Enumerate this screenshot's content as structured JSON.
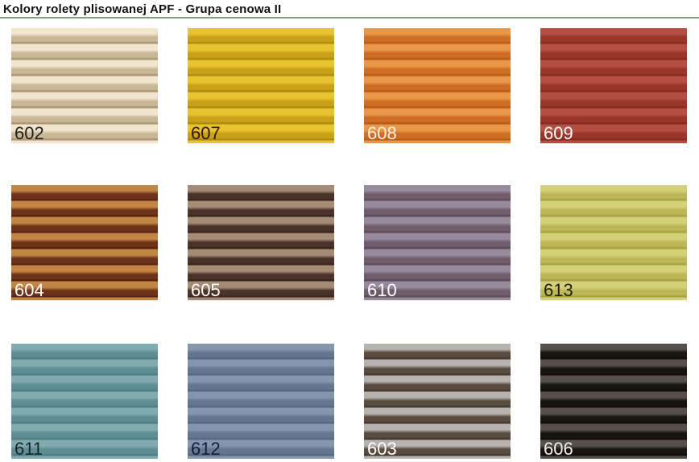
{
  "header": {
    "title": "Kolory rolety plisowanej APF - Grupa cenowa II",
    "rule_color": "#7aa97a"
  },
  "swatches": [
    {
      "label": "602",
      "light": "#f0e5cd",
      "dark": "#c9b694",
      "edge": "#ab9674",
      "label_color": "#1f1f1f"
    },
    {
      "label": "607",
      "light": "#e8c530",
      "dark": "#c9a018",
      "edge": "#ad8a10",
      "label_color": "#2a1c02"
    },
    {
      "label": "608",
      "light": "#e89848",
      "dark": "#cd6e24",
      "edge": "#b55a18",
      "label_color": "#f7efe7"
    },
    {
      "label": "609",
      "light": "#b54f42",
      "dark": "#99352a",
      "edge": "#842a20",
      "label_color": "#ffffff"
    },
    {
      "label": "604",
      "light": "#c28544",
      "dark": "#6d3418",
      "edge": "#572510",
      "label_color": "#ffffff"
    },
    {
      "label": "605",
      "light": "#a48c76",
      "dark": "#4b332a",
      "edge": "#3a2620",
      "label_color": "#ffffff"
    },
    {
      "label": "610",
      "light": "#968a9e",
      "dark": "#705c6a",
      "edge": "#5e4c5a",
      "label_color": "#ffffff"
    },
    {
      "label": "613",
      "light": "#d5d07a",
      "dark": "#bcb858",
      "edge": "#a8a446",
      "label_color": "#1e1e10"
    },
    {
      "label": "611",
      "light": "#81abae",
      "dark": "#5e8d93",
      "edge": "#4e7d84",
      "label_color": "#13282b"
    },
    {
      "label": "612",
      "light": "#8795ae",
      "dark": "#667691",
      "edge": "#576683",
      "label_color": "#131d33"
    },
    {
      "label": "603",
      "light": "#b5b4b0",
      "dark": "#594b3e",
      "edge": "#463a30",
      "label_color": "#ffffff"
    },
    {
      "label": "606",
      "light": "#555049",
      "dark": "#181410",
      "edge": "#0f0c09",
      "label_color": "#f2f0ee"
    }
  ]
}
